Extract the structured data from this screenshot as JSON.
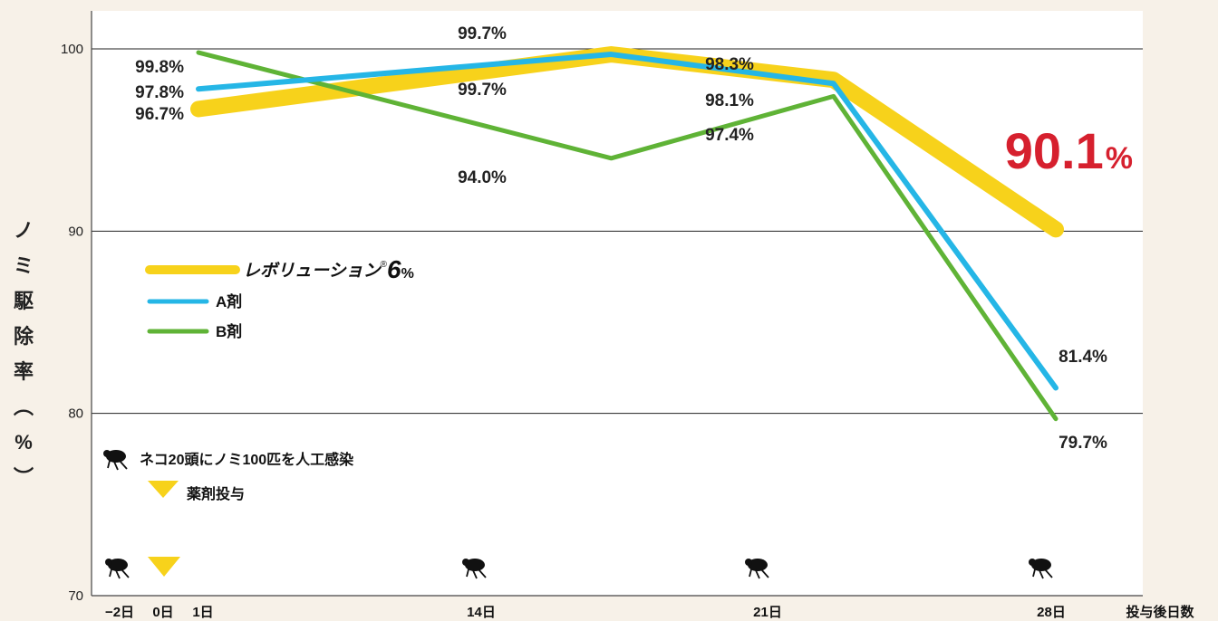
{
  "chart_data": {
    "type": "line",
    "ylabel": "ノミ駆除率（%）",
    "xlabel": "投与後日数",
    "ylim": [
      70,
      100
    ],
    "yticks": [
      100,
      90,
      80,
      70
    ],
    "x_tick_labels": [
      "−2日",
      "0日",
      "1日",
      "14日",
      "21日",
      "28日"
    ],
    "x": [
      1,
      14,
      21,
      28
    ],
    "series": [
      {
        "name": "レボリューション",
        "name_sup": "®",
        "name_suffix": "6",
        "name_pct": "%",
        "color": "#f7d21b",
        "values": [
          96.7,
          99.7,
          98.3,
          90.1
        ]
      },
      {
        "name": "A剤",
        "color": "#25b6e6",
        "values": [
          97.8,
          99.7,
          98.1,
          81.4
        ]
      },
      {
        "name": "B剤",
        "color": "#5fb336",
        "values": [
          99.8,
          94.0,
          97.4,
          79.7
        ]
      }
    ],
    "data_labels": {
      "day1": [
        "99.8%",
        "97.8%",
        "96.7%"
      ],
      "day14": [
        "99.7%",
        "99.7%",
        "94.0%"
      ],
      "day21": [
        "98.3%",
        "98.1%",
        "97.4%"
      ],
      "day28_revolution_value": "90.1",
      "day28_revolution_pct": "%",
      "day28_a": "81.4%",
      "day28_b": "79.7%"
    },
    "annotations": {
      "infestation": "ネコ20頭にノミ100匹を人工感染",
      "dosing": "薬剤投与"
    },
    "colors": {
      "marker": "#f7d21b",
      "highlight": "#d6202e"
    }
  }
}
